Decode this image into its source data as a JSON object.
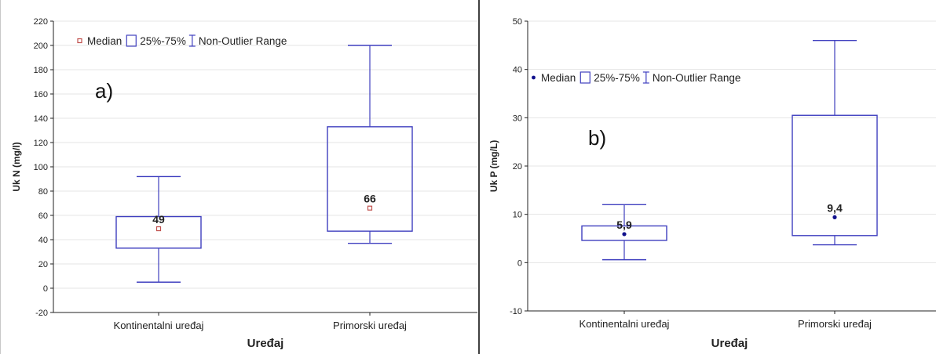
{
  "colors": {
    "box": "#3f3fbf",
    "grid": "#e4e4e4",
    "axis": "#222222",
    "median_a": "#c0504d",
    "median_b": "#10108c"
  },
  "legend": {
    "median": "Median",
    "box": "25%-75%",
    "whisker": "Non-Outlier Range"
  },
  "chart_data": [
    {
      "type": "box",
      "panel_label": "a)",
      "xlabel": "Uređaj",
      "ylabel": "Uk N (mg/l)",
      "ylim": [
        -20,
        220
      ],
      "yticks": [
        -20,
        0,
        20,
        40,
        60,
        80,
        100,
        120,
        140,
        160,
        180,
        200,
        220
      ],
      "grid": true,
      "legend_position": "top-left",
      "median_marker": "open-square",
      "categories": [
        "Kontinentalni uređaj",
        "Primorski uređaj"
      ],
      "boxes": [
        {
          "whisker_low": 5,
          "q1": 33,
          "median": 49,
          "q3": 59,
          "whisker_high": 92,
          "median_label": "49"
        },
        {
          "whisker_low": 37,
          "q1": 47,
          "median": 66,
          "q3": 133,
          "whisker_high": 200,
          "median_label": "66"
        }
      ]
    },
    {
      "type": "box",
      "panel_label": "b)",
      "xlabel": "Uređaj",
      "ylabel": "Uk P (mg/L)",
      "ylim": [
        -10,
        50
      ],
      "yticks": [
        -10,
        0,
        10,
        20,
        30,
        40,
        50
      ],
      "grid": true,
      "legend_position": "top-left",
      "median_marker": "filled-dot",
      "categories": [
        "Kontinentalni uređaj",
        "Primorski uređaj"
      ],
      "boxes": [
        {
          "whisker_low": 0.6,
          "q1": 4.6,
          "median": 5.9,
          "q3": 7.6,
          "whisker_high": 12,
          "median_label": "5,9"
        },
        {
          "whisker_low": 3.7,
          "q1": 5.6,
          "median": 9.4,
          "q3": 30.5,
          "whisker_high": 46,
          "median_label": "9,4"
        }
      ]
    }
  ]
}
